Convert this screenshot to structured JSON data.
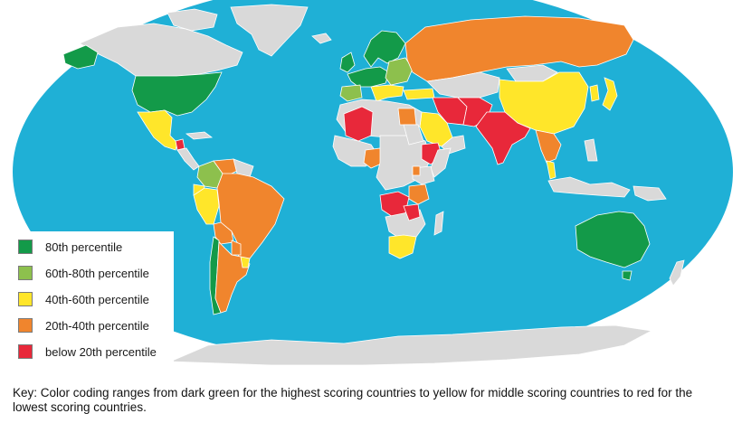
{
  "colors": {
    "ocean": "#1fb0d6",
    "land_no_data": "#d9d9d9",
    "border": "#ffffff",
    "percentile_80": "#139a49",
    "percentile_60_80": "#8dc04d",
    "percentile_40_60": "#ffe62a",
    "percentile_20_40": "#f0852d",
    "percentile_below_20": "#e8283a"
  },
  "legend": {
    "items": [
      {
        "label": "80th percentile",
        "color": "#139a49"
      },
      {
        "label": "60th-80th percentile",
        "color": "#8dc04d"
      },
      {
        "label": "40th-60th percentile",
        "color": "#ffe62a"
      },
      {
        "label": "20th-40th percentile",
        "color": "#f0852d"
      },
      {
        "label": "below 20th percentile",
        "color": "#e8283a"
      }
    ]
  },
  "caption": "Key: Color coding ranges from dark green for the highest scoring countries to yellow for middle scoring countries to red for the lowest scoring countries."
}
